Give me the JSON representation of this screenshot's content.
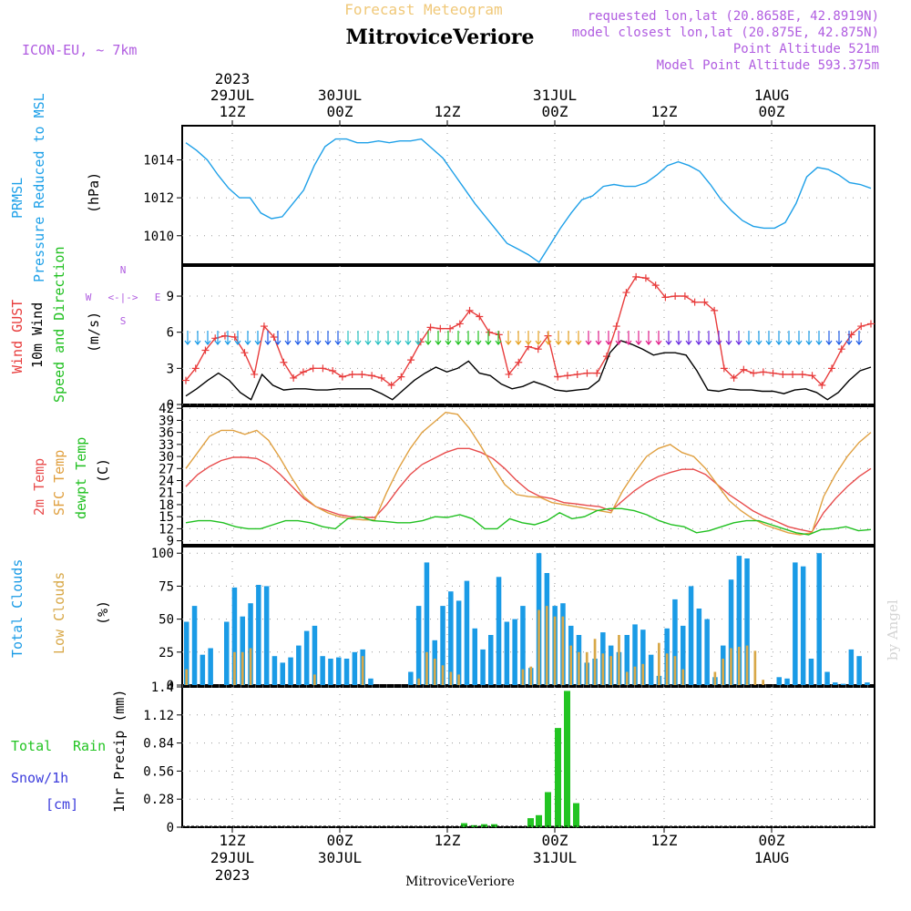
{
  "header": {
    "product": "Forecast Meteogram",
    "station": "MitroviceVeriore",
    "model": "ICON-EU, ~ 7km",
    "requested": "requested lon,lat (20.8658E, 42.8919N)",
    "closest": "model closest lon,lat (20.875E, 42.875N)",
    "point_alt": "Point Altitude 521m",
    "model_alt": "Model Point Altitude 593.375m",
    "credit": "by Angel",
    "footer_station": "MitroviceVeriore"
  },
  "time_axis": {
    "top_year": "2023",
    "top_dates": [
      "29JUL",
      "30JUL",
      "31JUL",
      "1AUG"
    ],
    "hours": [
      "12Z",
      "00Z",
      "12Z",
      "00Z",
      "12Z",
      "00Z"
    ],
    "bottom_dates": [
      "29JUL",
      "30JUL",
      "31JUL",
      "1AUG"
    ],
    "bottom_year": "2023"
  },
  "panels": {
    "pressure": {
      "label1": "PRMSL",
      "label2": "Pressure Reduced to MSL",
      "unit": "(hPa)"
    },
    "wind": {
      "label1": "Wind GUST",
      "label2": "10m Wind",
      "label3": "Speed and Direction",
      "unit": "(m/s)",
      "compass": {
        "n": "N",
        "s": "S",
        "w": "W",
        "e": "E",
        "arrows": "<-|->"
      }
    },
    "temp": {
      "label1": "2m Temp",
      "label2": "SFC Temp",
      "label3": "dewpt Temp",
      "unit": "(C)"
    },
    "cloud": {
      "label1": "Total Clouds",
      "label2": "Low Clouds",
      "unit": "(%)"
    },
    "precip": {
      "label1": "Total",
      "label2": "Rain",
      "label3": "Snow/1h",
      "label4": "[cm]",
      "unit": "1hr Precip (mm)"
    }
  },
  "colors": {
    "pressure": "#1ea0e8",
    "gust": "#e83c3c",
    "wind": "#000000",
    "temp2m": "#e84c4c",
    "sfc": "#e0a040",
    "dew": "#20c020",
    "total_cloud": "#1a9be6",
    "low_cloud": "#d8a848",
    "rain": "#22c422",
    "snow": "#3c3cdc",
    "header_title": "#f0c878",
    "info": "#b05ce0"
  },
  "chart_data": [
    {
      "type": "line",
      "title": "PRMSL Pressure Reduced to MSL",
      "ylabel": "(hPa)",
      "x": "hours since 29JUL 06Z (hourly, 0-64)",
      "ylim": [
        1008.5,
        1015.8
      ],
      "yticks": [
        1010,
        1012,
        1014
      ],
      "series": [
        {
          "name": "PRMSL",
          "values": [
            1014.9,
            1014.5,
            1014.0,
            1013.2,
            1012.5,
            1012.0,
            1012.0,
            1011.2,
            1010.9,
            1011.0,
            1011.7,
            1012.4,
            1013.7,
            1014.7,
            1015.1,
            1015.1,
            1014.9,
            1014.9,
            1015.0,
            1014.9,
            1015.0,
            1015.0,
            1015.1,
            1014.6,
            1014.1,
            1013.3,
            1012.5,
            1011.7,
            1011.0,
            1010.3,
            1009.6,
            1009.3,
            1009.0,
            1008.6,
            1009.5,
            1010.4,
            1011.2,
            1011.9,
            1012.1,
            1012.6,
            1012.7,
            1012.6,
            1012.6,
            1012.8,
            1013.2,
            1013.7,
            1013.9,
            1013.7,
            1013.4,
            1012.7,
            1011.9,
            1011.3,
            1010.8,
            1010.5,
            1010.4,
            1010.4,
            1010.7,
            1011.7,
            1013.1,
            1013.6,
            1013.5,
            1013.2,
            1012.8,
            1012.7,
            1012.5
          ]
        }
      ]
    },
    {
      "type": "line",
      "title": "Wind GUST / 10m Wind Speed and Direction",
      "ylabel": "(m/s)",
      "ylim": [
        0,
        11.5
      ],
      "yticks": [
        0,
        3,
        6,
        9
      ],
      "series": [
        {
          "name": "Wind GUST",
          "values": [
            2.0,
            3.0,
            4.5,
            5.5,
            5.7,
            5.6,
            4.3,
            2.5,
            6.5,
            5.6,
            3.5,
            2.2,
            2.7,
            3.0,
            3.0,
            2.8,
            2.3,
            2.5,
            2.5,
            2.4,
            2.2,
            1.6,
            2.3,
            3.7,
            5.2,
            6.4,
            6.3,
            6.3,
            6.7,
            7.8,
            7.3,
            6.0,
            5.8,
            2.5,
            3.5,
            4.8,
            4.6,
            5.7,
            2.3,
            2.4,
            2.5,
            2.6,
            2.6,
            4.0,
            6.5,
            9.3,
            10.6,
            10.5,
            9.9,
            8.9,
            9.0,
            9.0,
            8.5,
            8.5,
            7.8,
            3.0,
            2.2,
            2.9,
            2.6,
            2.7,
            2.6,
            2.5,
            2.5,
            2.5,
            2.4,
            1.6,
            3.0,
            4.6,
            5.8,
            6.5,
            6.7
          ]
        },
        {
          "name": "10m Wind",
          "values": [
            0.7,
            1.3,
            2.0,
            2.6,
            2.0,
            1.0,
            0.4,
            2.5,
            1.6,
            1.2,
            1.3,
            1.3,
            1.2,
            1.2,
            1.3,
            1.3,
            1.3,
            1.3,
            0.9,
            0.4,
            1.2,
            2.0,
            2.6,
            3.1,
            2.7,
            3.0,
            3.6,
            2.6,
            2.4,
            1.7,
            1.3,
            1.5,
            1.9,
            1.6,
            1.2,
            1.1,
            1.2,
            1.3,
            2.0,
            4.3,
            5.3,
            5.0,
            4.6,
            4.1,
            4.3,
            4.3,
            4.1,
            2.8,
            1.2,
            1.1,
            1.3,
            1.2,
            1.2,
            1.1,
            1.1,
            0.9,
            1.2,
            1.3,
            1.0,
            0.4,
            1.0,
            2.0,
            2.8,
            3.1
          ]
        }
      ]
    },
    {
      "type": "line",
      "title": "2m Temp / SFC Temp / dewpt Temp",
      "ylabel": "(C)",
      "ylim": [
        8,
        42.5
      ],
      "yticks": [
        9,
        12,
        15,
        18,
        21,
        24,
        27,
        30,
        33,
        36,
        39,
        42
      ],
      "series": [
        {
          "name": "2m Temp",
          "values": [
            22.5,
            25.5,
            27.5,
            29.0,
            29.8,
            29.8,
            29.5,
            28.0,
            25.5,
            22.5,
            19.5,
            17.5,
            16.5,
            15.5,
            15.0,
            14.8,
            14.8,
            18.0,
            22.0,
            25.5,
            28.0,
            29.5,
            31.0,
            32.0,
            32.0,
            31.0,
            29.5,
            27.0,
            24.0,
            21.5,
            20.0,
            19.5,
            18.5,
            18.2,
            17.8,
            17.5,
            16.5,
            19.0,
            21.5,
            23.5,
            25.0,
            26.0,
            26.8,
            26.8,
            25.5,
            23.0,
            20.5,
            18.5,
            16.5,
            15.0,
            13.8,
            12.5,
            11.8,
            11.2,
            16.0,
            19.5,
            22.5,
            25.0,
            27.0
          ]
        },
        {
          "name": "SFC Temp",
          "values": [
            27.0,
            31.0,
            35.0,
            36.5,
            36.5,
            35.5,
            36.5,
            34.0,
            29.5,
            24.5,
            20.0,
            17.5,
            16.0,
            15.0,
            14.5,
            14.2,
            14.2,
            21.0,
            27.0,
            32.0,
            36.0,
            38.5,
            41.0,
            40.5,
            37.0,
            32.5,
            27.5,
            23.0,
            20.5,
            20.0,
            19.8,
            18.5,
            18.0,
            17.5,
            17.0,
            16.5,
            16.0,
            21.5,
            26.0,
            30.0,
            32.0,
            33.0,
            31.0,
            30.0,
            27.0,
            23.0,
            19.0,
            16.5,
            14.5,
            13.0,
            12.0,
            11.0,
            10.5,
            11.0,
            20.0,
            25.5,
            30.0,
            33.5,
            36.0
          ]
        },
        {
          "name": "dewpt Temp",
          "values": [
            13.5,
            14.0,
            14.0,
            13.5,
            12.5,
            12.0,
            12.0,
            13.0,
            14.0,
            14.0,
            13.5,
            12.5,
            12.0,
            14.5,
            15.0,
            14.0,
            13.8,
            13.5,
            13.5,
            14.0,
            15.0,
            14.8,
            15.5,
            14.5,
            12.0,
            12.0,
            14.5,
            13.5,
            13.0,
            14.0,
            16.0,
            14.5,
            15.0,
            16.5,
            17.0,
            17.0,
            16.5,
            15.5,
            14.0,
            13.0,
            12.5,
            11.0,
            11.5,
            12.5,
            13.5,
            14.0,
            14.0,
            13.0,
            12.0,
            11.0,
            10.5,
            11.8,
            12.0,
            12.5,
            11.5,
            11.8
          ]
        }
      ]
    },
    {
      "type": "bar",
      "title": "Total Clouds / Low Clouds",
      "ylabel": "(%)",
      "ylim": [
        0,
        105
      ],
      "yticks": [
        0,
        25,
        50,
        75,
        100
      ],
      "series": [
        {
          "name": "Total Clouds",
          "values": [
            48,
            60,
            23,
            28,
            0,
            48,
            74,
            52,
            62,
            76,
            75,
            22,
            17,
            21,
            30,
            41,
            45,
            22,
            20,
            21,
            20,
            25,
            27,
            5,
            0,
            0,
            0,
            0,
            10,
            60,
            93,
            34,
            60,
            71,
            64,
            79,
            43,
            27,
            38,
            82,
            48,
            50,
            60,
            13,
            100,
            85,
            60,
            62,
            45,
            38,
            17,
            20,
            40,
            30,
            25,
            38,
            46,
            42,
            23,
            7,
            43,
            65,
            45,
            75,
            58,
            50,
            6,
            30,
            80,
            98,
            96,
            0,
            0,
            0,
            6,
            5,
            93,
            90,
            20,
            100,
            10,
            2,
            1,
            27,
            22,
            2
          ]
        },
        {
          "name": "Low Clouds",
          "values": [
            12,
            0,
            0,
            0,
            0,
            0,
            25,
            25,
            28,
            0,
            0,
            0,
            0,
            0,
            0,
            0,
            8,
            0,
            0,
            0,
            0,
            0,
            22,
            0,
            0,
            0,
            0,
            0,
            0,
            5,
            25,
            20,
            15,
            10,
            8,
            0,
            0,
            0,
            0,
            0,
            0,
            0,
            12,
            14,
            57,
            60,
            52,
            52,
            30,
            25,
            25,
            35,
            24,
            22,
            38,
            10,
            14,
            16,
            0,
            32,
            24,
            22,
            12,
            0,
            0,
            0,
            10,
            20,
            28,
            29,
            30,
            26,
            4,
            0,
            0
          ]
        }
      ]
    },
    {
      "type": "bar",
      "title": "1hr Precip",
      "ylabel": "1hr Precip (mm)",
      "ylim": [
        0,
        1.4
      ],
      "yticks": [
        0,
        0.28,
        0.56,
        0.84,
        1.12,
        1.4
      ],
      "series": [
        {
          "name": "Total Rain",
          "values": [
            0.04,
            0.02,
            0.03,
            0.03,
            0.0,
            0.09,
            0.12,
            0.35,
            0.99,
            1.36,
            0.24
          ]
        }
      ]
    }
  ]
}
